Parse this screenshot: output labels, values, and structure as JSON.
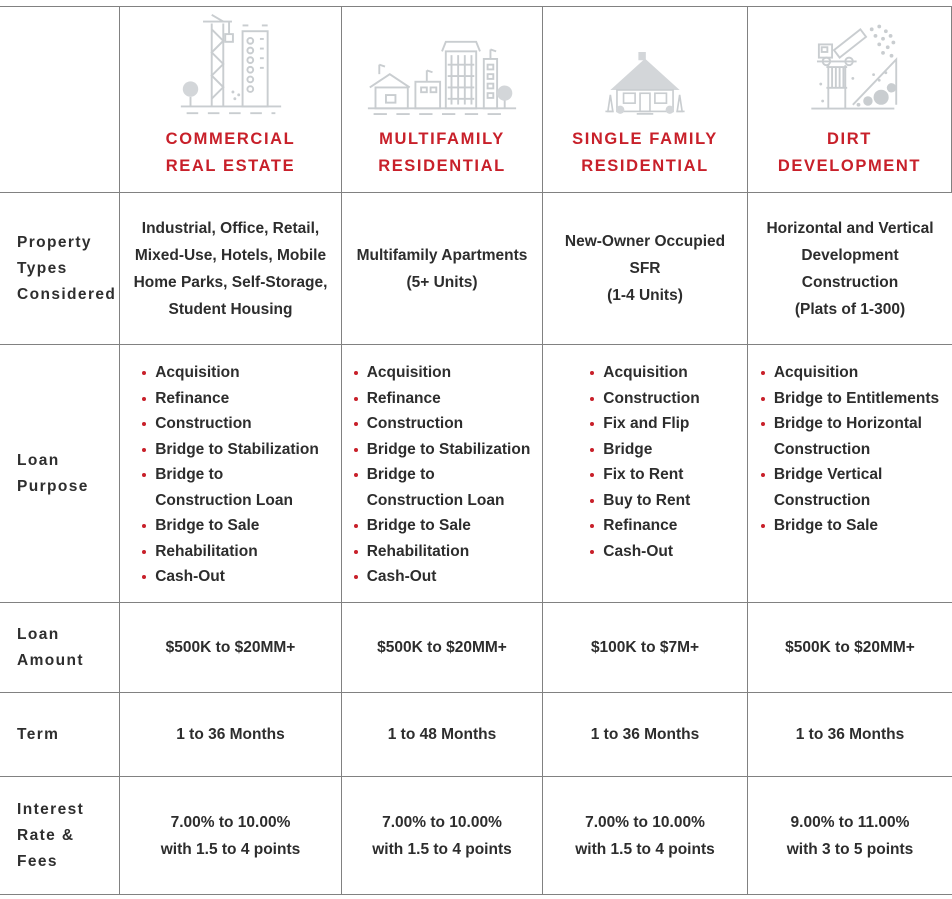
{
  "colors": {
    "accent_red": "#c8202a",
    "text_dark": "#2d2d2d",
    "grid_line": "#818181",
    "icon_gray": "#c9cdd0"
  },
  "table": {
    "row_headers": [
      "Property\nTypes\nConsidered",
      "Loan\nPurpose",
      "Loan\nAmount",
      "Term",
      "Interest\nRate & Fees"
    ],
    "columns": [
      {
        "title": "COMMERCIAL\nREAL ESTATE",
        "icon": "construction-crane-building-icon",
        "property_types": "Industrial, Office, Retail,\nMixed-Use, Hotels, Mobile\nHome Parks, Self-Storage,\nStudent Housing",
        "loan_purpose": [
          "Acquisition",
          "Refinance",
          "Construction",
          "Bridge to Stabilization",
          "Bridge to\nConstruction Loan",
          "Bridge to Sale",
          "Rehabilitation",
          "Cash-Out"
        ],
        "loan_amount": "$500K to $20MM+",
        "term": "1 to 36 Months",
        "interest_rate_fees": "7.00% to 10.00%\nwith 1.5 to 4 points"
      },
      {
        "title": "MULTIFAMILY\nRESIDENTIAL",
        "icon": "apartment-buildings-icon",
        "property_types": "Multifamily Apartments\n(5+ Units)",
        "loan_purpose": [
          "Acquisition",
          "Refinance",
          "Construction",
          "Bridge to Stabilization",
          "Bridge to\nConstruction Loan",
          "Bridge to Sale",
          "Rehabilitation",
          "Cash-Out"
        ],
        "loan_amount": "$500K to $20MM+",
        "term": "1 to 48 Months",
        "interest_rate_fees": "7.00% to 10.00%\nwith 1.5 to 4 points"
      },
      {
        "title": "SINGLE FAMILY\nRESIDENTIAL",
        "icon": "single-family-house-icon",
        "property_types": "New-Owner Occupied SFR\n(1-4 Units)",
        "loan_purpose": [
          "Acquisition",
          "Construction",
          "Fix and Flip",
          "Bridge",
          "Fix to Rent",
          "Buy to Rent",
          "Refinance",
          "Cash-Out"
        ],
        "loan_amount": "$100K to $7M+",
        "term": "1 to 36 Months",
        "interest_rate_fees": "7.00% to 10.00%\nwith 1.5 to 4 points"
      },
      {
        "title": "DIRT\nDEVELOPMENT",
        "icon": "dirt-excavation-icon",
        "property_types": "Horizontal and Vertical\nDevelopment Construction\n(Plats of 1-300)",
        "loan_purpose": [
          "Acquisition",
          "Bridge to Entitlements",
          "Bridge to Horizontal\nConstruction",
          "Bridge Vertical\nConstruction",
          "Bridge to Sale"
        ],
        "loan_amount": "$500K to $20MM+",
        "term": "1 to 36 Months",
        "interest_rate_fees": "9.00% to 11.00%\nwith 3 to 5 points"
      }
    ]
  }
}
